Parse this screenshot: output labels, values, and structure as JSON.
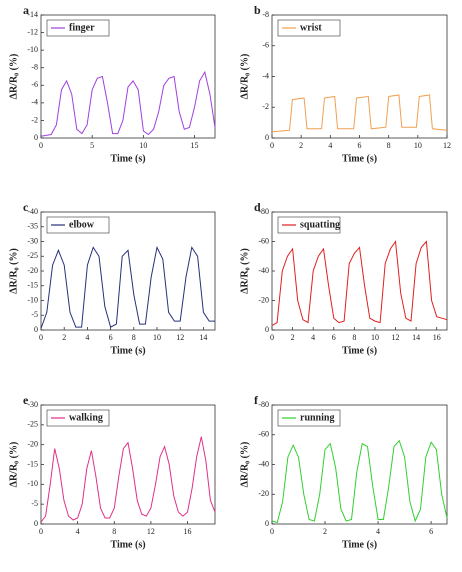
{
  "chart_data": [
    {
      "type": "line",
      "panel_label": "a",
      "xlabel": "Time (s)",
      "ylabel": "ΔR/R₀ (%)",
      "xlim": [
        0,
        17
      ],
      "ylim": [
        0,
        -14
      ],
      "xticks": [
        0,
        5,
        10,
        15
      ],
      "yticks": [
        0,
        -2,
        -4,
        -6,
        -8,
        -10,
        -12,
        -14
      ],
      "x": [
        0,
        0.5,
        1,
        1.5,
        2,
        2.5,
        3,
        3.5,
        4,
        4.5,
        5,
        5.5,
        6,
        6.5,
        7,
        7.5,
        8,
        8.5,
        9,
        9.5,
        10,
        10.5,
        11,
        11.5,
        12,
        12.5,
        13,
        13.5,
        14,
        14.5,
        15,
        15.5,
        16,
        16.5,
        17
      ],
      "series": [
        {
          "name": "finger",
          "color": "#a040e0",
          "values": [
            -0.2,
            -0.3,
            -0.4,
            -1.5,
            -5.5,
            -6.5,
            -5,
            -1,
            -0.5,
            -1.5,
            -5.5,
            -6.8,
            -7,
            -4,
            -0.5,
            -0.5,
            -2,
            -5.8,
            -6.5,
            -5.5,
            -0.8,
            -0.4,
            -1,
            -3,
            -6,
            -6.8,
            -7,
            -3,
            -1,
            -1.2,
            -3.5,
            -6.5,
            -7.5,
            -5,
            -1.2
          ]
        }
      ]
    },
    {
      "type": "line",
      "panel_label": "b",
      "xlabel": "Time (s)",
      "ylabel": "ΔR/R₀ (%)",
      "xlim": [
        0,
        12
      ],
      "ylim": [
        0,
        -8
      ],
      "xticks": [
        0,
        2,
        4,
        6,
        8,
        10,
        12
      ],
      "yticks": [
        0,
        -2,
        -4,
        -6,
        -8
      ],
      "x": [
        0,
        1.2,
        1.4,
        2.2,
        2.4,
        3.4,
        3.6,
        4.3,
        4.5,
        5.6,
        5.8,
        6.6,
        6.8,
        7.8,
        8.0,
        8.7,
        8.9,
        9.9,
        10.1,
        10.8,
        11.0,
        12
      ],
      "series": [
        {
          "name": "wrist",
          "color": "#f0a050",
          "values": [
            -0.4,
            -0.5,
            -2.5,
            -2.6,
            -0.6,
            -0.6,
            -2.6,
            -2.7,
            -0.6,
            -0.6,
            -2.6,
            -2.7,
            -0.6,
            -0.7,
            -2.7,
            -2.8,
            -0.7,
            -0.7,
            -2.7,
            -2.8,
            -0.6,
            -0.5
          ]
        }
      ]
    },
    {
      "type": "line",
      "panel_label": "c",
      "xlabel": "Time (s)",
      "ylabel": "ΔR/R₀ (%)",
      "xlim": [
        0,
        15
      ],
      "ylim": [
        0,
        -40
      ],
      "xticks": [
        0,
        2,
        4,
        6,
        8,
        10,
        12,
        14
      ],
      "yticks": [
        0,
        -5,
        -10,
        -15,
        -20,
        -25,
        -30,
        -35,
        -40
      ],
      "x": [
        0,
        0.5,
        1,
        1.5,
        2,
        2.5,
        3,
        3.5,
        4,
        4.5,
        5,
        5.5,
        6,
        6.5,
        7,
        7.5,
        8,
        8.5,
        9,
        9.5,
        10,
        10.5,
        11,
        11.5,
        12,
        12.5,
        13,
        13.5,
        14,
        14.5,
        15
      ],
      "series": [
        {
          "name": "elbow",
          "color": "#28307a",
          "values": [
            -0.5,
            -6,
            -22,
            -27,
            -22,
            -6,
            -1,
            -1,
            -22,
            -28,
            -25,
            -8,
            -1,
            -2,
            -25,
            -27,
            -12,
            -2,
            -2,
            -18,
            -28,
            -24,
            -6,
            -3,
            -3,
            -18,
            -28,
            -25,
            -6,
            -3,
            -3
          ]
        }
      ]
    },
    {
      "type": "line",
      "panel_label": "d",
      "xlabel": "Time (s)",
      "ylabel": "ΔR/R₀ (%)",
      "xlim": [
        0,
        17
      ],
      "ylim": [
        0,
        -80
      ],
      "xticks": [
        0,
        2,
        4,
        6,
        8,
        10,
        12,
        14,
        16
      ],
      "yticks": [
        0,
        -20,
        -40,
        -60,
        -80
      ],
      "x": [
        0,
        0.5,
        1,
        1.5,
        2,
        2.5,
        3,
        3.5,
        4,
        4.5,
        5,
        5.5,
        6,
        6.5,
        7,
        7.5,
        8,
        8.5,
        9,
        9.5,
        10,
        10.5,
        11,
        11.5,
        12,
        12.5,
        13,
        13.5,
        14,
        14.5,
        15,
        15.5,
        16,
        16.5,
        17
      ],
      "series": [
        {
          "name": "squatting",
          "color": "#e02020",
          "values": [
            -3,
            -5,
            -40,
            -50,
            -55,
            -20,
            -7,
            -5,
            -40,
            -50,
            -55,
            -30,
            -8,
            -5,
            -6,
            -45,
            -52,
            -56,
            -30,
            -8,
            -6,
            -5,
            -45,
            -55,
            -60,
            -25,
            -8,
            -6,
            -45,
            -56,
            -60,
            -20,
            -9,
            -8,
            -7
          ]
        }
      ]
    },
    {
      "type": "line",
      "panel_label": "e",
      "xlabel": "Time (s)",
      "ylabel": "ΔR/R₀ (%)",
      "xlim": [
        0,
        19
      ],
      "ylim": [
        0,
        -30
      ],
      "xticks": [
        0,
        4,
        8,
        12,
        16
      ],
      "yticks": [
        0,
        -5,
        -10,
        -15,
        -20,
        -25,
        -30
      ],
      "x": [
        0,
        0.5,
        1,
        1.5,
        2,
        2.5,
        3,
        3.5,
        4,
        4.5,
        5,
        5.5,
        6,
        6.5,
        7,
        7.5,
        8,
        8.5,
        9,
        9.5,
        10,
        10.5,
        11,
        11.5,
        12,
        12.5,
        13,
        13.5,
        14,
        14.5,
        15,
        15.5,
        16,
        16.5,
        17,
        17.5,
        18,
        18.5,
        19
      ],
      "series": [
        {
          "name": "walking",
          "color": "#e0308a",
          "values": [
            -0.5,
            -2,
            -10,
            -19,
            -14,
            -6,
            -2,
            -1,
            -1.5,
            -5,
            -14,
            -18.5,
            -12,
            -4,
            -1.5,
            -1.5,
            -4,
            -12,
            -19,
            -20.5,
            -14,
            -6,
            -2.5,
            -2,
            -4,
            -10,
            -17,
            -19.5,
            -15,
            -7,
            -3,
            -2,
            -3,
            -9,
            -17,
            -22,
            -16,
            -6,
            -3
          ]
        }
      ]
    },
    {
      "type": "line",
      "panel_label": "f",
      "xlabel": "Time (s)",
      "ylabel": "ΔR/R₀ (%)",
      "xlim": [
        0,
        6.6
      ],
      "ylim": [
        0,
        -80
      ],
      "xticks": [
        0,
        2,
        4,
        6
      ],
      "yticks": [
        0,
        -20,
        -40,
        -60,
        -80
      ],
      "x": [
        0,
        0.2,
        0.4,
        0.6,
        0.8,
        1.0,
        1.2,
        1.4,
        1.6,
        1.8,
        2.0,
        2.2,
        2.4,
        2.6,
        2.8,
        3.0,
        3.2,
        3.4,
        3.6,
        3.8,
        4.0,
        4.2,
        4.4,
        4.6,
        4.8,
        5.0,
        5.2,
        5.4,
        5.6,
        5.8,
        6.0,
        6.2,
        6.4,
        6.6
      ],
      "series": [
        {
          "name": "running",
          "color": "#30d030",
          "values": [
            -2,
            -1,
            -15,
            -45,
            -53,
            -45,
            -20,
            -3,
            -2,
            -20,
            -50,
            -54,
            -38,
            -10,
            -2,
            -3,
            -35,
            -54,
            -52,
            -25,
            -3,
            -3,
            -25,
            -52,
            -56,
            -45,
            -15,
            -2,
            -10,
            -45,
            -55,
            -50,
            -20,
            -4
          ]
        }
      ]
    }
  ]
}
